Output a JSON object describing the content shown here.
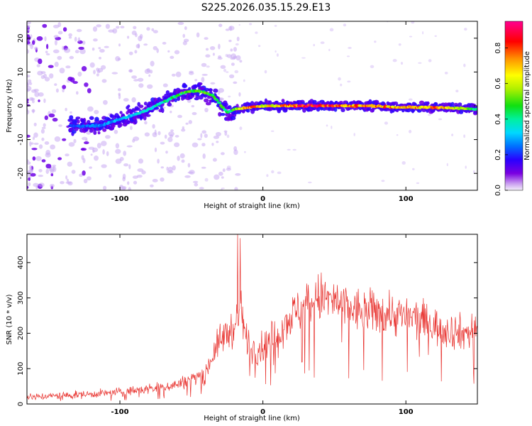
{
  "title": "S225.2026.035.15.29.E13",
  "colors": {
    "snr_line": "#e8332f",
    "spectrum_core": "#6f00e6",
    "spectrum_faint": "#c9a9f3",
    "axes": "#000000"
  },
  "chart_data": [
    {
      "type": "heatmap",
      "xlabel": "Height of straight line (km)",
      "ylabel": "Frequency (Hz)",
      "xlim": [
        -165,
        150
      ],
      "ylim": [
        -25,
        25
      ],
      "xticks": [
        "-100",
        "0",
        "100"
      ],
      "yticks": [
        "20",
        "10",
        "0",
        "-10",
        "-20"
      ],
      "xtick_values": [
        -100,
        0,
        100
      ],
      "ytick_values": [
        20,
        10,
        0,
        -10,
        -20
      ],
      "ridge": {
        "x": [
          -130,
          -115,
          -100,
          -85,
          -70,
          -55,
          -45,
          -35,
          -25,
          -20,
          -10,
          0,
          25,
          50,
          75,
          100,
          125,
          150
        ],
        "y": [
          -6,
          -6,
          -4,
          -2,
          1,
          4,
          4.5,
          3,
          -2,
          -1,
          -0.5,
          0,
          0,
          0,
          0,
          -0.5,
          -0.5,
          -1
        ],
        "amplitude": [
          0.25,
          0.3,
          0.35,
          0.4,
          0.45,
          0.55,
          0.6,
          0.55,
          0.5,
          0.55,
          0.95,
          0.7,
          0.95,
          0.9,
          0.85,
          0.8,
          0.85,
          0.5
        ]
      },
      "colorbar": {
        "label": "Normalized spectral amplitude",
        "ticks": [
          "0.0",
          "0.2",
          "0.4",
          "0.6",
          "0.8"
        ],
        "tick_values": [
          0.0,
          0.2,
          0.4,
          0.6,
          0.8
        ],
        "range": [
          0.0,
          0.95
        ]
      }
    },
    {
      "type": "line",
      "xlabel": "Height of straight line (km)",
      "ylabel": "SNR (10 * v/v)",
      "xlim": [
        -165,
        150
      ],
      "ylim": [
        0,
        480
      ],
      "xticks": [
        "-100",
        "0",
        "100"
      ],
      "yticks": [
        "0",
        "100",
        "200",
        "300",
        "400"
      ],
      "xtick_values": [
        -100,
        0,
        100
      ],
      "ytick_values": [
        0,
        100,
        200,
        300,
        400
      ],
      "series": [
        {
          "name": "SNR",
          "x": [
            -165,
            -150,
            -135,
            -120,
            -105,
            -90,
            -75,
            -60,
            -50,
            -40,
            -35,
            -30,
            -25,
            -20,
            -17,
            -15,
            -12,
            -8,
            -5,
            0,
            10,
            20,
            30,
            40,
            50,
            60,
            70,
            80,
            90,
            100,
            110,
            120,
            130,
            140,
            150
          ],
          "values": [
            20,
            22,
            25,
            28,
            32,
            38,
            45,
            55,
            70,
            90,
            140,
            180,
            200,
            220,
            240,
            260,
            190,
            160,
            150,
            160,
            200,
            250,
            280,
            300,
            290,
            270,
            260,
            260,
            255,
            245,
            240,
            220,
            210,
            200,
            210
          ]
        }
      ]
    }
  ]
}
